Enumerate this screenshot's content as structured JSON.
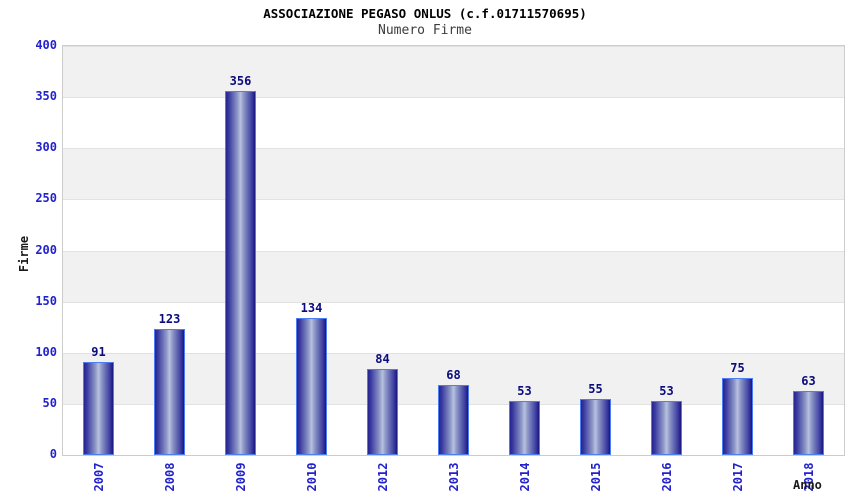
{
  "chart_data": {
    "type": "bar",
    "title": "ASSOCIAZIONE PEGASO ONLUS (c.f.01711570695)",
    "subtitle": "Numero Firme",
    "xlabel": "Anno",
    "ylabel": "Firme",
    "categories": [
      "2007",
      "2008",
      "2009",
      "2010",
      "2012",
      "2013",
      "2014",
      "2015",
      "2016",
      "2017",
      "2018"
    ],
    "values": [
      91,
      123,
      356,
      134,
      84,
      68,
      53,
      55,
      53,
      75,
      63
    ],
    "ylim": [
      0,
      400
    ],
    "ytick_step": 50,
    "yticks": [
      0,
      50,
      100,
      150,
      200,
      250,
      300,
      350,
      400
    ],
    "grid": "alternating-horizontal-bands",
    "legend": "none",
    "colors": {
      "bar_dark": "#1e1e8c",
      "bar_light": "#bac2e0",
      "bar_border": "#4d7df2",
      "axis_tick_label": "#2222cc",
      "value_label": "#0b0b7d",
      "band_gray": "#f1f1f1",
      "band_white": "#ffffff",
      "gridline": "#e2e2e2",
      "plot_border": "#cccccc",
      "title_color": "#000000",
      "subtitle_color": "#3c3c3c",
      "axis_title_color": "#1a1a1a"
    }
  }
}
